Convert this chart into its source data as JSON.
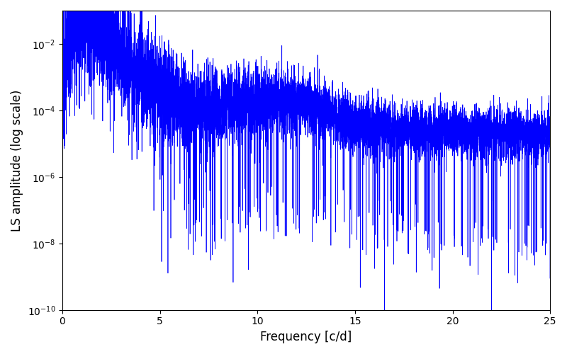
{
  "xlabel": "Frequency [c/d]",
  "ylabel": "LS amplitude (log scale)",
  "xlim": [
    0,
    25
  ],
  "ylim": [
    1e-10,
    0.1
  ],
  "line_color": "#0000ff",
  "line_width": 0.5,
  "figsize": [
    8.0,
    5.0
  ],
  "dpi": 100,
  "background_color": "#ffffff",
  "xticks": [
    0,
    5,
    10,
    15,
    20,
    25
  ],
  "seed": 12345,
  "n_points": 8000,
  "freq_max": 25.0
}
